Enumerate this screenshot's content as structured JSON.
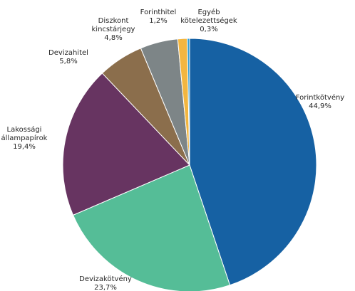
{
  "chart_data": {
    "type": "pie",
    "start_angle_deg": 0,
    "direction": "clockwise",
    "slices": [
      {
        "name": "Forintkötvény",
        "label_lines": [
          "Forintkötvény"
        ],
        "value": 44.9,
        "value_label": "44,9%",
        "color": "#1661a3"
      },
      {
        "name": "Devizakötvény",
        "label_lines": [
          "Devizakötvény"
        ],
        "value": 23.7,
        "value_label": "23,7%",
        "color": "#55bd97"
      },
      {
        "name": "Lakossági állampapírok",
        "label_lines": [
          "Lakossági",
          "állampapírok"
        ],
        "value": 19.4,
        "value_label": "19,4%",
        "color": "#673461"
      },
      {
        "name": "Devizahitel",
        "label_lines": [
          "Devizahitel"
        ],
        "value": 5.8,
        "value_label": "5,8%",
        "color": "#8b6e4c"
      },
      {
        "name": "Diszkont kincstárjegy",
        "label_lines": [
          "Diszkont",
          "kincstárjegy"
        ],
        "value": 4.8,
        "value_label": "4,8%",
        "color": "#7d8587"
      },
      {
        "name": "Forinthitel",
        "label_lines": [
          "Forinthitel"
        ],
        "value": 1.2,
        "value_label": "1,2%",
        "color": "#f3b640"
      },
      {
        "name": "Egyéb kötelezettségek",
        "label_lines": [
          "Egyéb",
          "kötelezettségek"
        ],
        "value": 0.3,
        "value_label": "0,3%",
        "color": "#2f9ed6"
      }
    ]
  }
}
